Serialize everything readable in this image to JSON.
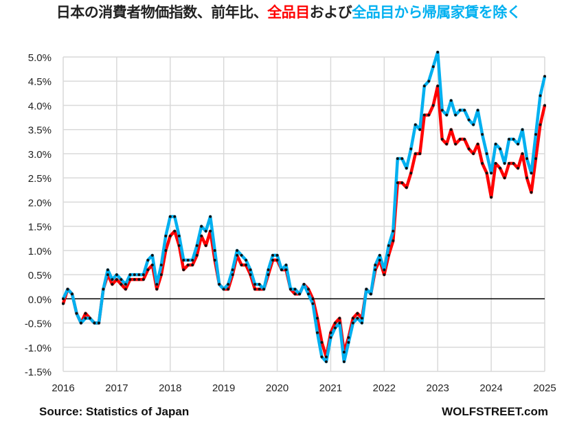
{
  "chart_data": {
    "type": "line",
    "title_parts": [
      {
        "text": "日本の消費者物価指数、前年比、",
        "color": "#222222"
      },
      {
        "text": "全品目",
        "color": "#ff0000"
      },
      {
        "text": "および",
        "color": "#222222"
      },
      {
        "text": "全品目から帰属家賃を除く",
        "color": "#00b0f0"
      }
    ],
    "xlabel": "",
    "ylabel": "",
    "ylim": [
      -1.5,
      5.0
    ],
    "yticks": [
      -1.5,
      -1.0,
      -0.5,
      0.0,
      0.5,
      1.0,
      1.5,
      2.0,
      2.5,
      3.0,
      3.5,
      4.0,
      4.5,
      5.0
    ],
    "ytick_labels": [
      "-1.5%",
      "-1.0%",
      "-0.5%",
      "0.0%",
      "0.5%",
      "1.0%",
      "1.5%",
      "2.0%",
      "2.5%",
      "3.0%",
      "3.5%",
      "4.0%",
      "4.5%",
      "5.0%"
    ],
    "xticks": [
      "2016",
      "2017",
      "2018",
      "2019",
      "2020",
      "2021",
      "2022",
      "2023",
      "2024",
      "2025"
    ],
    "x_start": "2016-01",
    "frequency": "monthly",
    "grid": true,
    "series": [
      {
        "name": "全品目",
        "color": "#ff0000",
        "values": [
          -0.1,
          0.2,
          0.1,
          -0.3,
          -0.5,
          -0.3,
          -0.4,
          -0.5,
          -0.5,
          0.2,
          0.5,
          0.3,
          0.4,
          0.3,
          0.2,
          0.4,
          0.4,
          0.4,
          0.4,
          0.6,
          0.7,
          0.2,
          0.5,
          1.0,
          1.3,
          1.4,
          1.1,
          0.6,
          0.7,
          0.7,
          0.9,
          1.3,
          1.1,
          1.4,
          0.8,
          0.3,
          0.2,
          0.2,
          0.5,
          0.9,
          0.7,
          0.7,
          0.5,
          0.2,
          0.2,
          0.2,
          0.5,
          0.8,
          0.8,
          0.6,
          0.6,
          0.2,
          0.1,
          0.1,
          0.3,
          0.2,
          0.0,
          -0.4,
          -0.9,
          -1.2,
          -0.7,
          -0.5,
          -0.4,
          -1.1,
          -0.8,
          -0.4,
          -0.3,
          -0.4,
          0.2,
          0.1,
          0.6,
          0.8,
          0.5,
          0.9,
          1.2,
          2.4,
          2.4,
          2.3,
          2.6,
          3.0,
          3.0,
          3.8,
          3.8,
          4.0,
          4.4,
          3.3,
          3.2,
          3.5,
          3.2,
          3.3,
          3.3,
          3.1,
          3.0,
          3.2,
          2.8,
          2.6,
          2.1,
          2.8,
          2.7,
          2.5,
          2.8,
          2.8,
          2.7,
          3.0,
          2.5,
          2.2,
          2.9,
          3.6,
          4.0
        ]
      },
      {
        "name": "全品目から帰属家賃を除く",
        "color": "#00b0f0",
        "values": [
          0.0,
          0.2,
          0.1,
          -0.3,
          -0.5,
          -0.4,
          -0.4,
          -0.5,
          -0.5,
          0.2,
          0.6,
          0.4,
          0.5,
          0.4,
          0.3,
          0.5,
          0.5,
          0.5,
          0.5,
          0.8,
          0.9,
          0.3,
          0.7,
          1.3,
          1.7,
          1.7,
          1.3,
          0.8,
          0.8,
          0.8,
          1.1,
          1.5,
          1.4,
          1.7,
          1.0,
          0.3,
          0.2,
          0.3,
          0.6,
          1.0,
          0.9,
          0.8,
          0.6,
          0.3,
          0.3,
          0.2,
          0.6,
          0.9,
          0.9,
          0.6,
          0.7,
          0.2,
          0.2,
          0.1,
          0.3,
          0.1,
          -0.1,
          -0.7,
          -1.2,
          -1.3,
          -0.8,
          -0.6,
          -0.5,
          -1.3,
          -0.9,
          -0.5,
          -0.4,
          -0.5,
          0.2,
          0.1,
          0.7,
          0.9,
          0.6,
          1.1,
          1.4,
          2.9,
          2.9,
          2.7,
          3.1,
          3.6,
          3.5,
          4.4,
          4.5,
          4.8,
          5.1,
          3.9,
          3.8,
          4.1,
          3.8,
          3.9,
          3.9,
          3.7,
          3.6,
          3.9,
          3.4,
          3.0,
          2.6,
          3.2,
          3.1,
          2.8,
          3.3,
          3.3,
          3.2,
          3.5,
          2.9,
          2.6,
          3.4,
          4.2,
          4.6
        ]
      }
    ]
  },
  "footer": {
    "source": "Source: Statistics of Japan",
    "brand": "WOLFSTREET.com"
  }
}
